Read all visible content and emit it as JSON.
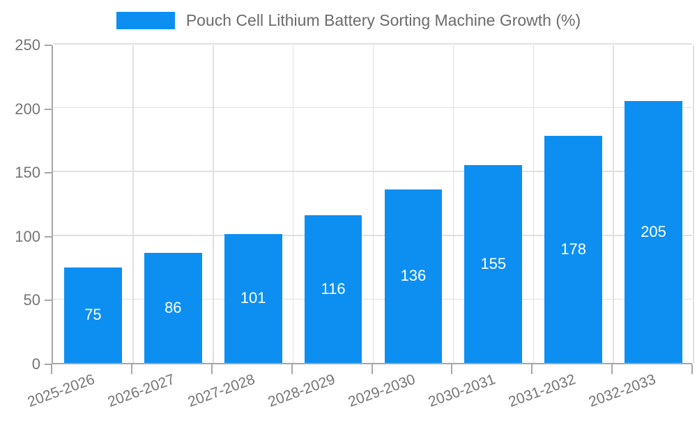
{
  "chart_data": {
    "type": "bar",
    "title": "Pouch Cell Lithium Battery Sorting Machine Growth (%)",
    "legend": {
      "position": "top-center",
      "entries": [
        "Pouch Cell Lithium Battery Sorting Machine Growth (%)"
      ]
    },
    "categories": [
      "2025-2026",
      "2026-2027",
      "2027-2028",
      "2028-2029",
      "2029-2030",
      "2030-2031",
      "2031-2032",
      "2032-2033"
    ],
    "values": [
      75,
      86,
      101,
      116,
      136,
      155,
      178,
      205
    ],
    "value_labels_position": "inside-center",
    "xlabel": "",
    "ylabel": "",
    "ylim": [
      0,
      250
    ],
    "yticks": [
      0,
      50,
      100,
      150,
      200,
      250
    ],
    "grid": "on",
    "x_tick_rotation_deg": -20,
    "bar_width_fraction": 0.72
  },
  "style": {
    "accent": "#0d8ff2",
    "grid": "#e0e0e0",
    "axis": "#a6a6a6",
    "tick_text": "#757575",
    "legend_text": "#6b6b6b",
    "bar_label": "#ffffff",
    "bg": "#ffffff"
  }
}
